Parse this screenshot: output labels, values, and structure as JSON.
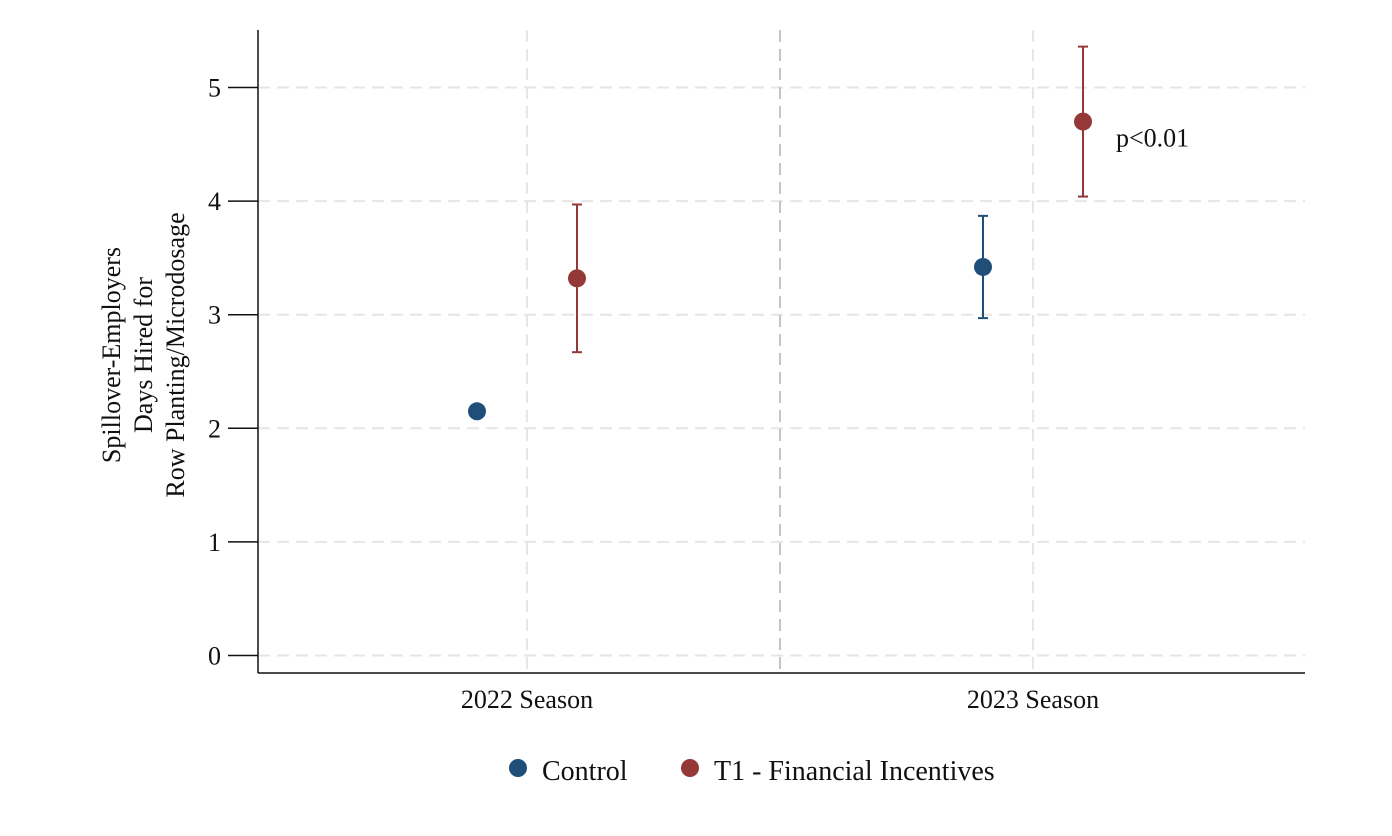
{
  "chart_data": {
    "type": "scatter",
    "title": "",
    "xlabel": "",
    "ylabel_lines": [
      "Spillover-Employers",
      "Days Hired for",
      "Row Planting/Microdosage"
    ],
    "ylim": [
      -0.15,
      5.5
    ],
    "yticks": [
      0,
      1,
      2,
      3,
      4,
      5
    ],
    "ytick_labels": [
      "0",
      "1",
      "2",
      "3",
      "4",
      "5"
    ],
    "categories": [
      "2022 Season",
      "2023 Season"
    ],
    "grid": true,
    "legend_position": "bottom",
    "series": [
      {
        "name": "Control",
        "color": "#1f4e79",
        "points": [
          {
            "category": "2022 Season",
            "y": 2.15,
            "ci": null
          },
          {
            "category": "2023 Season",
            "y": 3.42,
            "ci": [
              2.97,
              3.87
            ]
          }
        ]
      },
      {
        "name": "T1 - Financial Incentives",
        "color": "#943838",
        "points": [
          {
            "category": "2022 Season",
            "y": 3.32,
            "ci": [
              2.67,
              3.97
            ]
          },
          {
            "category": "2023 Season",
            "y": 4.7,
            "ci": [
              4.04,
              5.36
            ]
          }
        ]
      }
    ],
    "annotations": [
      {
        "text": "p<0.01",
        "category": "2023 Season",
        "y": 4.56
      }
    ]
  }
}
